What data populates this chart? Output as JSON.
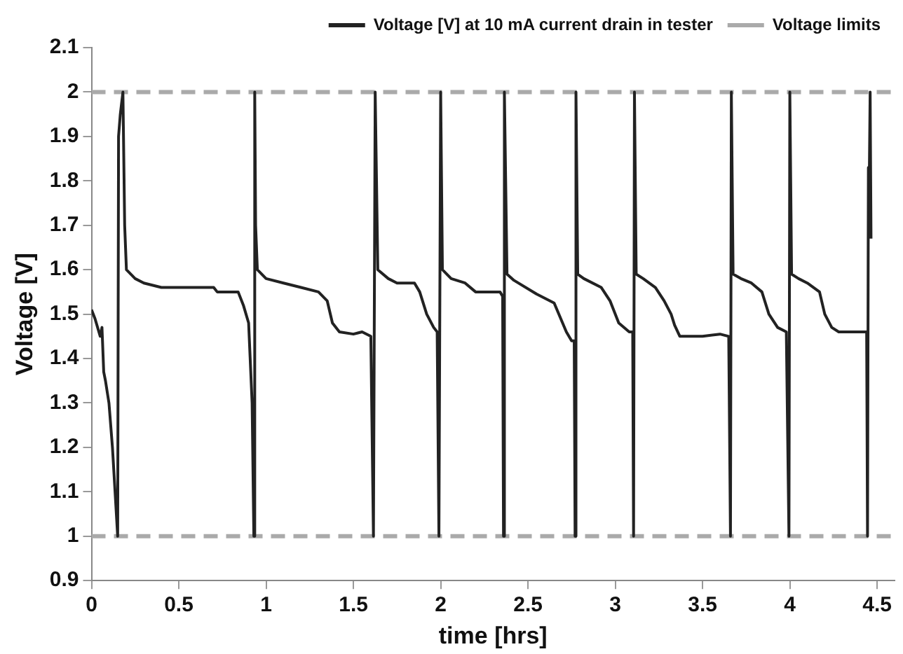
{
  "chart_data": {
    "type": "line",
    "xlabel": "time [hrs]",
    "ylabel": "Voltage [V]",
    "xlim": [
      0,
      4.6
    ],
    "xticks": [
      0,
      0.5,
      1,
      1.5,
      2,
      2.5,
      3,
      3.5,
      4,
      4.5
    ],
    "ylim": [
      0.9,
      2.1
    ],
    "yticks": [
      0.9,
      1,
      1.1,
      1.2,
      1.3,
      1.4,
      1.5,
      1.6,
      1.7,
      1.8,
      1.9,
      2,
      2.1
    ],
    "grid": false,
    "legend": "top",
    "marker": "none",
    "line_style": "solid",
    "series": [
      {
        "name": "Voltage [V] at 10 mA current drain in tester",
        "color": "#222222",
        "x": [
          0,
          0.02,
          0.05,
          0.06,
          0.07,
          0.08,
          0.1,
          0.12,
          0.15,
          0.155,
          0.165,
          0.18,
          0.19,
          0.2,
          0.25,
          0.3,
          0.4,
          0.7,
          0.72,
          0.84,
          0.87,
          0.9,
          0.92,
          0.93,
          0.935,
          0.94,
          0.95,
          1.0,
          1.1,
          1.2,
          1.3,
          1.35,
          1.38,
          1.42,
          1.5,
          1.55,
          1.6,
          1.615,
          1.625,
          1.64,
          1.7,
          1.75,
          1.85,
          1.88,
          1.92,
          1.96,
          1.98,
          1.99,
          2.0,
          2.01,
          2.06,
          2.14,
          2.2,
          2.34,
          2.355,
          2.36,
          2.365,
          2.38,
          2.42,
          2.55,
          2.65,
          2.72,
          2.75,
          2.765,
          2.77,
          2.775,
          2.785,
          2.82,
          2.92,
          2.97,
          3.02,
          3.08,
          3.1,
          3.105,
          3.11,
          3.12,
          3.16,
          3.23,
          3.28,
          3.32,
          3.34,
          3.37,
          3.5,
          3.6,
          3.65,
          3.66,
          3.665,
          3.675,
          3.72,
          3.78,
          3.84,
          3.88,
          3.93,
          3.98,
          3.995,
          4.0,
          4.01,
          4.05,
          4.1,
          4.17,
          4.2,
          4.24,
          4.28,
          4.44,
          4.445,
          4.45,
          4.455,
          4.46,
          4.465
        ],
        "values": [
          1.51,
          1.49,
          1.45,
          1.47,
          1.37,
          1.35,
          1.3,
          1.2,
          1.0,
          1.9,
          1.95,
          2.0,
          1.7,
          1.6,
          1.58,
          1.57,
          1.56,
          1.56,
          1.55,
          1.55,
          1.52,
          1.48,
          1.3,
          1.0,
          2.0,
          1.7,
          1.6,
          1.58,
          1.57,
          1.56,
          1.55,
          1.53,
          1.48,
          1.46,
          1.455,
          1.46,
          1.45,
          1.0,
          2.0,
          1.6,
          1.58,
          1.57,
          1.57,
          1.55,
          1.5,
          1.47,
          1.46,
          1.0,
          2.0,
          1.6,
          1.58,
          1.57,
          1.55,
          1.55,
          1.54,
          1.0,
          2.0,
          1.59,
          1.576,
          1.545,
          1.525,
          1.46,
          1.44,
          1.44,
          1.0,
          2.0,
          1.59,
          1.58,
          1.56,
          1.53,
          1.48,
          1.46,
          1.46,
          1.0,
          2.0,
          1.59,
          1.58,
          1.56,
          1.53,
          1.5,
          1.475,
          1.45,
          1.45,
          1.455,
          1.45,
          1.0,
          2.0,
          1.59,
          1.58,
          1.57,
          1.55,
          1.5,
          1.47,
          1.46,
          1.0,
          2.0,
          1.59,
          1.58,
          1.57,
          1.55,
          1.5,
          1.47,
          1.46,
          1.46,
          1.0,
          1.83,
          1.8,
          2.0,
          1.67
        ]
      }
    ],
    "ref_lines": [
      {
        "axis": "y",
        "value": 2,
        "label": "Voltage limits",
        "color": "#aaaaaa",
        "line_style": "dashed"
      },
      {
        "axis": "y",
        "value": 1,
        "color": "#aaaaaa",
        "line_style": "dashed"
      }
    ]
  }
}
